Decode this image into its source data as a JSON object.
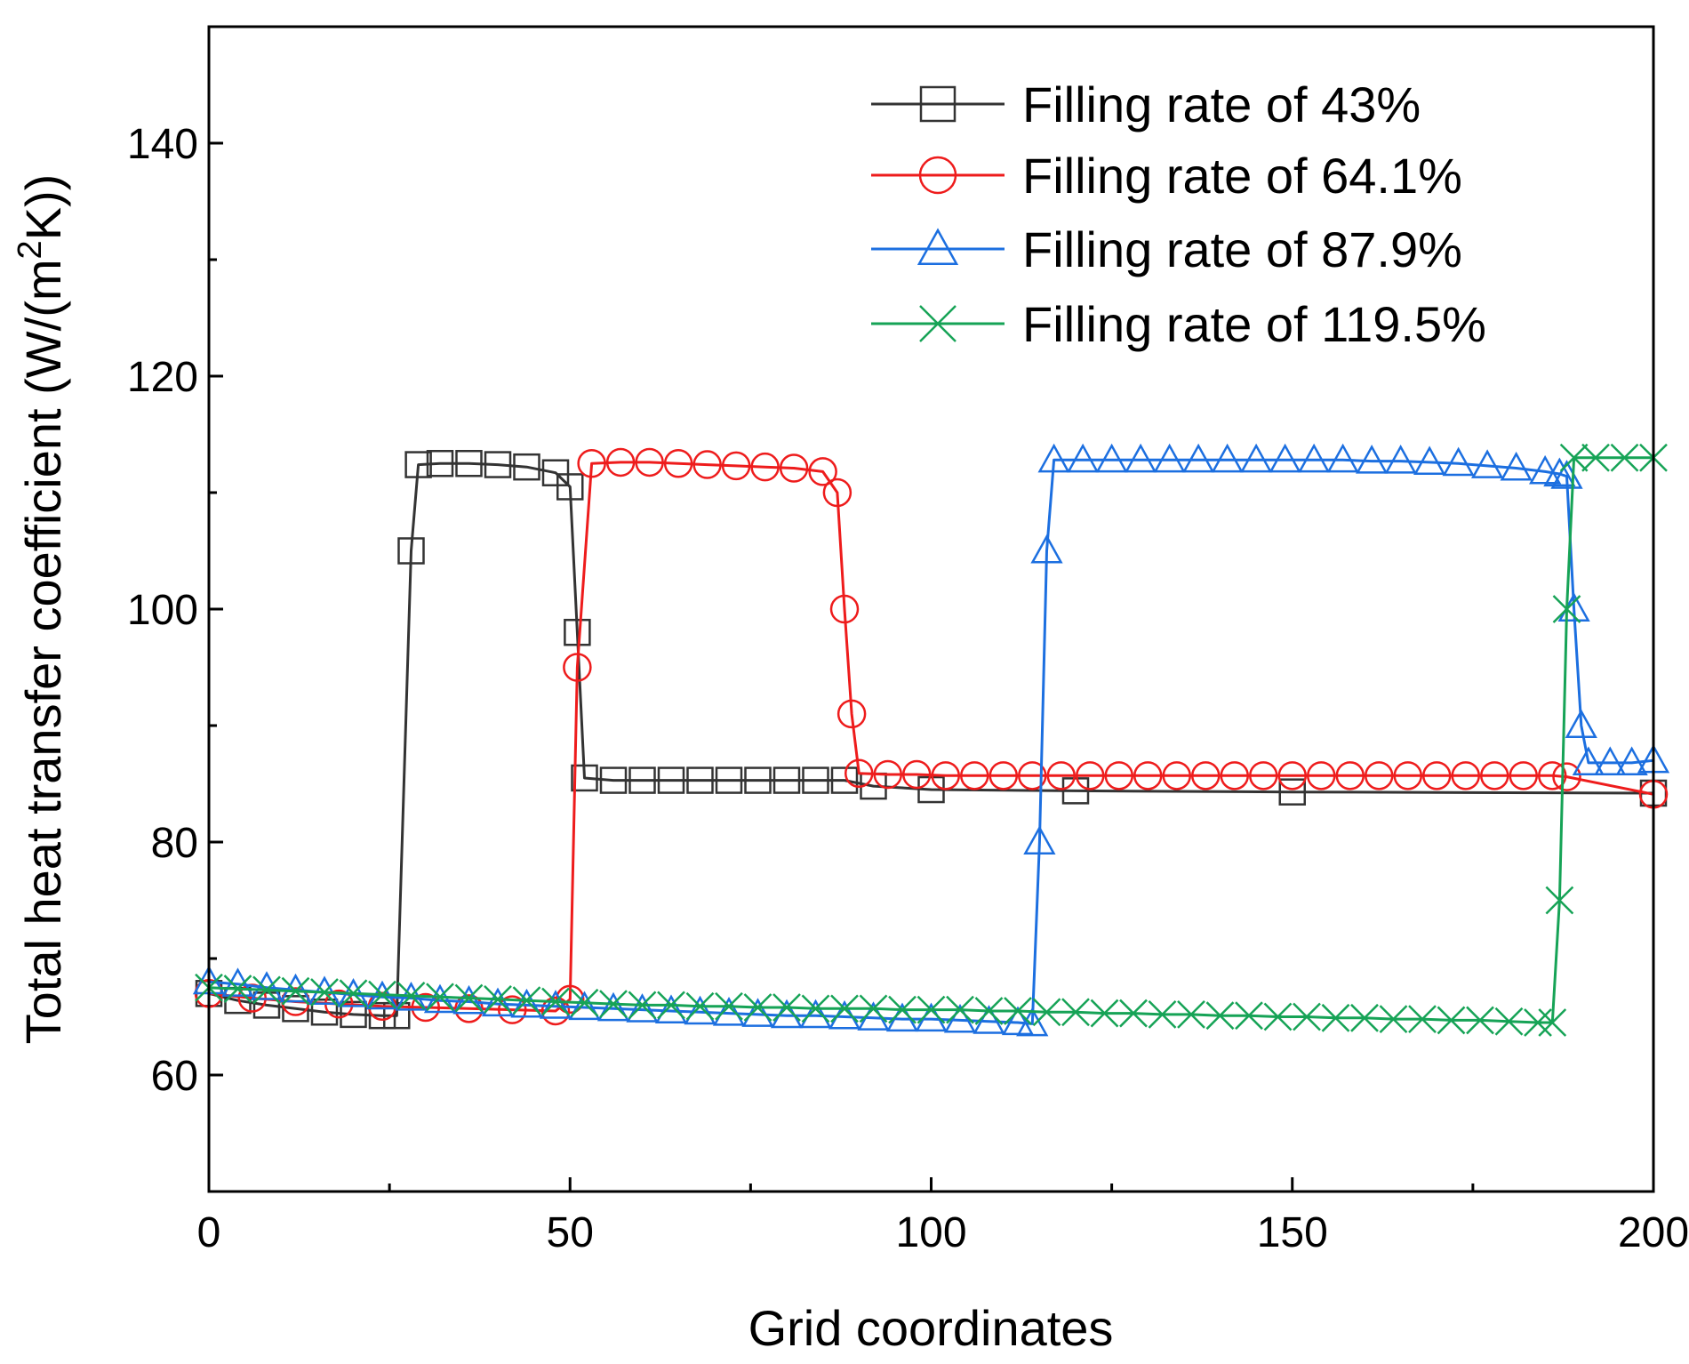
{
  "chart_data": {
    "type": "line",
    "title": "",
    "xlabel": "Grid coordinates",
    "ylabel": "Total heat transfer coefficient (W/(m",
    "ylabel_sup": "2",
    "ylabel_tail": "K))",
    "xlim": [
      0,
      200
    ],
    "ylim": [
      50,
      150
    ],
    "xticks": [
      0,
      50,
      100,
      150,
      200
    ],
    "xtick_labels": [
      "0",
      "50",
      "100",
      "150",
      "200"
    ],
    "yticks": [
      60,
      80,
      100,
      120,
      140
    ],
    "ytick_labels": [
      "60",
      "80",
      "100",
      "120",
      "140"
    ],
    "grid": false,
    "legend_position": "top-right",
    "series": [
      {
        "name": "Filling rate of 43%",
        "color": "#333333",
        "marker": "square",
        "x": [
          0,
          4,
          8,
          12,
          16,
          20,
          24,
          26,
          28,
          29,
          32,
          36,
          40,
          44,
          48,
          50,
          51,
          52,
          56,
          60,
          64,
          68,
          72,
          76,
          80,
          84,
          88,
          92,
          100,
          120,
          150,
          200
        ],
        "y": [
          67.0,
          66.4,
          66.0,
          65.7,
          65.4,
          65.2,
          65.1,
          65.1,
          105,
          112.4,
          112.5,
          112.5,
          112.4,
          112.2,
          111.7,
          110.5,
          98,
          85.5,
          85.3,
          85.3,
          85.3,
          85.3,
          85.3,
          85.3,
          85.3,
          85.3,
          85.3,
          84.8,
          84.5,
          84.4,
          84.3,
          84.2
        ]
      },
      {
        "name": "Filling rate of 64.1%",
        "color": "#ee1c1c",
        "marker": "circle",
        "x": [
          0,
          6,
          12,
          18,
          24,
          30,
          36,
          42,
          48,
          50,
          51,
          53,
          57,
          61,
          65,
          69,
          73,
          77,
          81,
          85,
          87,
          88,
          89,
          90,
          94,
          98,
          102,
          106,
          110,
          114,
          118,
          122,
          126,
          130,
          134,
          138,
          142,
          146,
          150,
          154,
          158,
          162,
          166,
          170,
          174,
          178,
          182,
          186,
          188,
          200
        ],
        "y": [
          67.0,
          66.6,
          66.3,
          66.1,
          65.9,
          65.8,
          65.7,
          65.6,
          65.5,
          66.5,
          95,
          112.5,
          112.6,
          112.6,
          112.5,
          112.4,
          112.3,
          112.2,
          112.1,
          111.8,
          110,
          100,
          91,
          85.9,
          85.8,
          85.8,
          85.7,
          85.7,
          85.7,
          85.7,
          85.7,
          85.7,
          85.7,
          85.7,
          85.7,
          85.7,
          85.7,
          85.7,
          85.7,
          85.7,
          85.7,
          85.7,
          85.7,
          85.7,
          85.7,
          85.7,
          85.7,
          85.7,
          85.6,
          84.1
        ]
      },
      {
        "name": "Filling rate of 87.9%",
        "color": "#1c6fe0",
        "marker": "triangle",
        "x": [
          0,
          4,
          8,
          12,
          16,
          20,
          24,
          28,
          32,
          36,
          40,
          44,
          48,
          52,
          56,
          60,
          64,
          68,
          72,
          76,
          80,
          84,
          88,
          92,
          96,
          100,
          104,
          108,
          112,
          114,
          115,
          116,
          117,
          121,
          125,
          129,
          133,
          137,
          141,
          145,
          149,
          153,
          157,
          161,
          165,
          169,
          173,
          177,
          181,
          185,
          187,
          188,
          189,
          190,
          191,
          194,
          197,
          200
        ],
        "y": [
          68.0,
          67.8,
          67.5,
          67.3,
          67.1,
          66.9,
          66.7,
          66.6,
          66.4,
          66.3,
          66.1,
          66.0,
          65.9,
          65.8,
          65.7,
          65.6,
          65.5,
          65.4,
          65.3,
          65.2,
          65.1,
          65.1,
          65.0,
          64.9,
          64.8,
          64.8,
          64.7,
          64.6,
          64.5,
          64.4,
          80,
          105,
          112.8,
          112.8,
          112.8,
          112.8,
          112.8,
          112.8,
          112.8,
          112.8,
          112.8,
          112.8,
          112.8,
          112.7,
          112.7,
          112.6,
          112.5,
          112.3,
          112.1,
          111.8,
          111.6,
          111.4,
          100,
          90,
          86.8,
          86.8,
          86.8,
          87.0
        ]
      },
      {
        "name": "Filling rate of 119.5%",
        "color": "#16a356",
        "marker": "x",
        "x": [
          0,
          4,
          8,
          12,
          16,
          20,
          24,
          28,
          32,
          36,
          40,
          44,
          48,
          52,
          56,
          60,
          64,
          68,
          72,
          76,
          80,
          84,
          88,
          92,
          96,
          100,
          104,
          108,
          112,
          116,
          120,
          124,
          128,
          132,
          136,
          140,
          144,
          148,
          152,
          156,
          160,
          164,
          168,
          172,
          176,
          180,
          184,
          186,
          187,
          188,
          189,
          192,
          196,
          200
        ],
        "y": [
          67.5,
          67.4,
          67.3,
          67.2,
          67.1,
          67.0,
          66.9,
          66.8,
          66.7,
          66.6,
          66.5,
          66.4,
          66.3,
          66.2,
          66.1,
          66.0,
          66.0,
          65.9,
          65.9,
          65.8,
          65.8,
          65.7,
          65.7,
          65.7,
          65.6,
          65.6,
          65.6,
          65.5,
          65.5,
          65.4,
          65.4,
          65.3,
          65.3,
          65.2,
          65.2,
          65.1,
          65.1,
          65.0,
          65.0,
          64.9,
          64.9,
          64.8,
          64.8,
          64.7,
          64.7,
          64.6,
          64.5,
          64.5,
          75,
          100,
          113.0,
          113.0,
          113.0,
          113.0
        ]
      }
    ]
  }
}
